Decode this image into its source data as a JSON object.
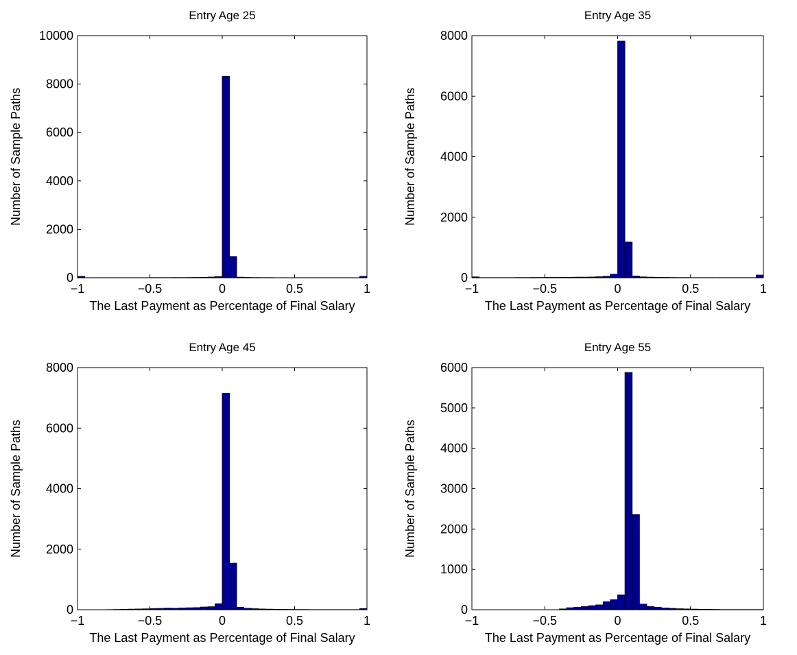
{
  "chart_data": [
    {
      "type": "bar",
      "title": "Entry Age 25",
      "xlabel": "The Last Payment as Percentage of Final Salary",
      "ylabel": "Number of Sample Paths",
      "xlim": [
        -1,
        1
      ],
      "ylim": [
        0,
        10000
      ],
      "xticks": [
        "−1",
        "−0.5",
        "0",
        "0.5",
        "1"
      ],
      "xtick_values": [
        -1,
        -0.5,
        0,
        0.5,
        1
      ],
      "yticks": [
        "0",
        "2000",
        "4000",
        "6000",
        "8000",
        "10000"
      ],
      "ytick_values": [
        0,
        2000,
        4000,
        6000,
        8000,
        10000
      ],
      "grid": false,
      "bar_color": "#00008f",
      "bin_edges": [
        -1,
        -0.95,
        -0.9,
        -0.85,
        -0.8,
        -0.75,
        -0.7,
        -0.65,
        -0.6,
        -0.55,
        -0.5,
        -0.45,
        -0.4,
        -0.35,
        -0.3,
        -0.25,
        -0.2,
        -0.15,
        -0.1,
        -0.05,
        0,
        0.05,
        0.1,
        0.15,
        0.2,
        0.25,
        0.3,
        0.35,
        0.4,
        0.45,
        0.5,
        0.55,
        0.6,
        0.65,
        0.7,
        0.75,
        0.8,
        0.85,
        0.9,
        0.95,
        1
      ],
      "values": [
        60,
        5,
        5,
        5,
        5,
        5,
        5,
        5,
        5,
        5,
        8,
        8,
        8,
        10,
        10,
        12,
        15,
        20,
        30,
        50,
        8320,
        880,
        25,
        15,
        10,
        8,
        8,
        5,
        5,
        5,
        5,
        5,
        5,
        5,
        5,
        5,
        5,
        5,
        5,
        60
      ]
    },
    {
      "type": "bar",
      "title": "Entry Age 35",
      "xlabel": "The Last Payment as Percentage of Final Salary",
      "ylabel": "Number of Sample Paths",
      "xlim": [
        -1,
        1
      ],
      "ylim": [
        0,
        8000
      ],
      "xticks": [
        "−1",
        "−0.5",
        "0",
        "0.5",
        "1"
      ],
      "xtick_values": [
        -1,
        -0.5,
        0,
        0.5,
        1
      ],
      "yticks": [
        "0",
        "2000",
        "4000",
        "6000",
        "8000"
      ],
      "ytick_values": [
        0,
        2000,
        4000,
        6000,
        8000
      ],
      "grid": false,
      "bar_color": "#00008f",
      "bin_edges": [
        -1,
        -0.95,
        -0.9,
        -0.85,
        -0.8,
        -0.75,
        -0.7,
        -0.65,
        -0.6,
        -0.55,
        -0.5,
        -0.45,
        -0.4,
        -0.35,
        -0.3,
        -0.25,
        -0.2,
        -0.15,
        -0.1,
        -0.05,
        0,
        0.05,
        0.1,
        0.15,
        0.2,
        0.25,
        0.3,
        0.35,
        0.4,
        0.45,
        0.5,
        0.55,
        0.6,
        0.65,
        0.7,
        0.75,
        0.8,
        0.85,
        0.9,
        0.95,
        1
      ],
      "values": [
        30,
        5,
        5,
        5,
        5,
        5,
        8,
        8,
        10,
        10,
        12,
        12,
        15,
        15,
        20,
        20,
        25,
        35,
        50,
        120,
        7820,
        1180,
        60,
        30,
        20,
        15,
        12,
        10,
        8,
        8,
        5,
        5,
        5,
        5,
        5,
        5,
        5,
        5,
        5,
        90
      ]
    },
    {
      "type": "bar",
      "title": "Entry Age 45",
      "xlabel": "The Last Payment as Percentage of Final Salary",
      "ylabel": "Number of Sample Paths",
      "xlim": [
        -1,
        1
      ],
      "ylim": [
        0,
        8000
      ],
      "xticks": [
        "−1",
        "−0.5",
        "0",
        "0.5",
        "1"
      ],
      "xtick_values": [
        -1,
        -0.5,
        0,
        0.5,
        1
      ],
      "yticks": [
        "0",
        "2000",
        "4000",
        "6000",
        "8000"
      ],
      "ytick_values": [
        0,
        2000,
        4000,
        6000,
        8000
      ],
      "grid": false,
      "bar_color": "#00008f",
      "bin_edges": [
        -1,
        -0.95,
        -0.9,
        -0.85,
        -0.8,
        -0.75,
        -0.7,
        -0.65,
        -0.6,
        -0.55,
        -0.5,
        -0.45,
        -0.4,
        -0.35,
        -0.3,
        -0.25,
        -0.2,
        -0.15,
        -0.1,
        -0.05,
        0,
        0.05,
        0.1,
        0.15,
        0.2,
        0.25,
        0.3,
        0.35,
        0.4,
        0.45,
        0.5,
        0.55,
        0.6,
        0.65,
        0.7,
        0.75,
        0.8,
        0.85,
        0.9,
        0.95,
        1
      ],
      "values": [
        0,
        0,
        0,
        0,
        5,
        10,
        15,
        20,
        25,
        30,
        40,
        45,
        55,
        50,
        60,
        65,
        70,
        90,
        100,
        200,
        7150,
        1540,
        80,
        50,
        35,
        25,
        20,
        15,
        12,
        10,
        8,
        8,
        5,
        5,
        5,
        5,
        5,
        5,
        5,
        40
      ]
    },
    {
      "type": "bar",
      "title": "Entry Age 55",
      "xlabel": "The Last Payment as Percentage of Final Salary",
      "ylabel": "Number of Sample Paths",
      "xlim": [
        -1,
        1
      ],
      "ylim": [
        0,
        6000
      ],
      "xticks": [
        "−1",
        "−0.5",
        "0",
        "0.5",
        "1"
      ],
      "xtick_values": [
        -1,
        -0.5,
        0,
        0.5,
        1
      ],
      "yticks": [
        "0",
        "1000",
        "2000",
        "3000",
        "4000",
        "5000",
        "6000"
      ],
      "ytick_values": [
        0,
        1000,
        2000,
        3000,
        4000,
        5000,
        6000
      ],
      "grid": false,
      "bar_color": "#00008f",
      "bin_edges": [
        -1,
        -0.95,
        -0.9,
        -0.85,
        -0.8,
        -0.75,
        -0.7,
        -0.65,
        -0.6,
        -0.55,
        -0.5,
        -0.45,
        -0.4,
        -0.35,
        -0.3,
        -0.25,
        -0.2,
        -0.15,
        -0.1,
        -0.05,
        0,
        0.05,
        0.1,
        0.15,
        0.2,
        0.25,
        0.3,
        0.35,
        0.4,
        0.45,
        0.5,
        0.55,
        0.6,
        0.65,
        0.7,
        0.75,
        0.8,
        0.85,
        0.9,
        0.95,
        1
      ],
      "values": [
        0,
        0,
        0,
        0,
        0,
        0,
        0,
        0,
        0,
        0,
        0,
        0,
        20,
        50,
        60,
        80,
        100,
        120,
        200,
        250,
        370,
        5880,
        2360,
        140,
        80,
        60,
        45,
        35,
        25,
        20,
        15,
        12,
        10,
        8,
        5,
        5,
        5,
        5,
        5,
        5
      ]
    }
  ]
}
